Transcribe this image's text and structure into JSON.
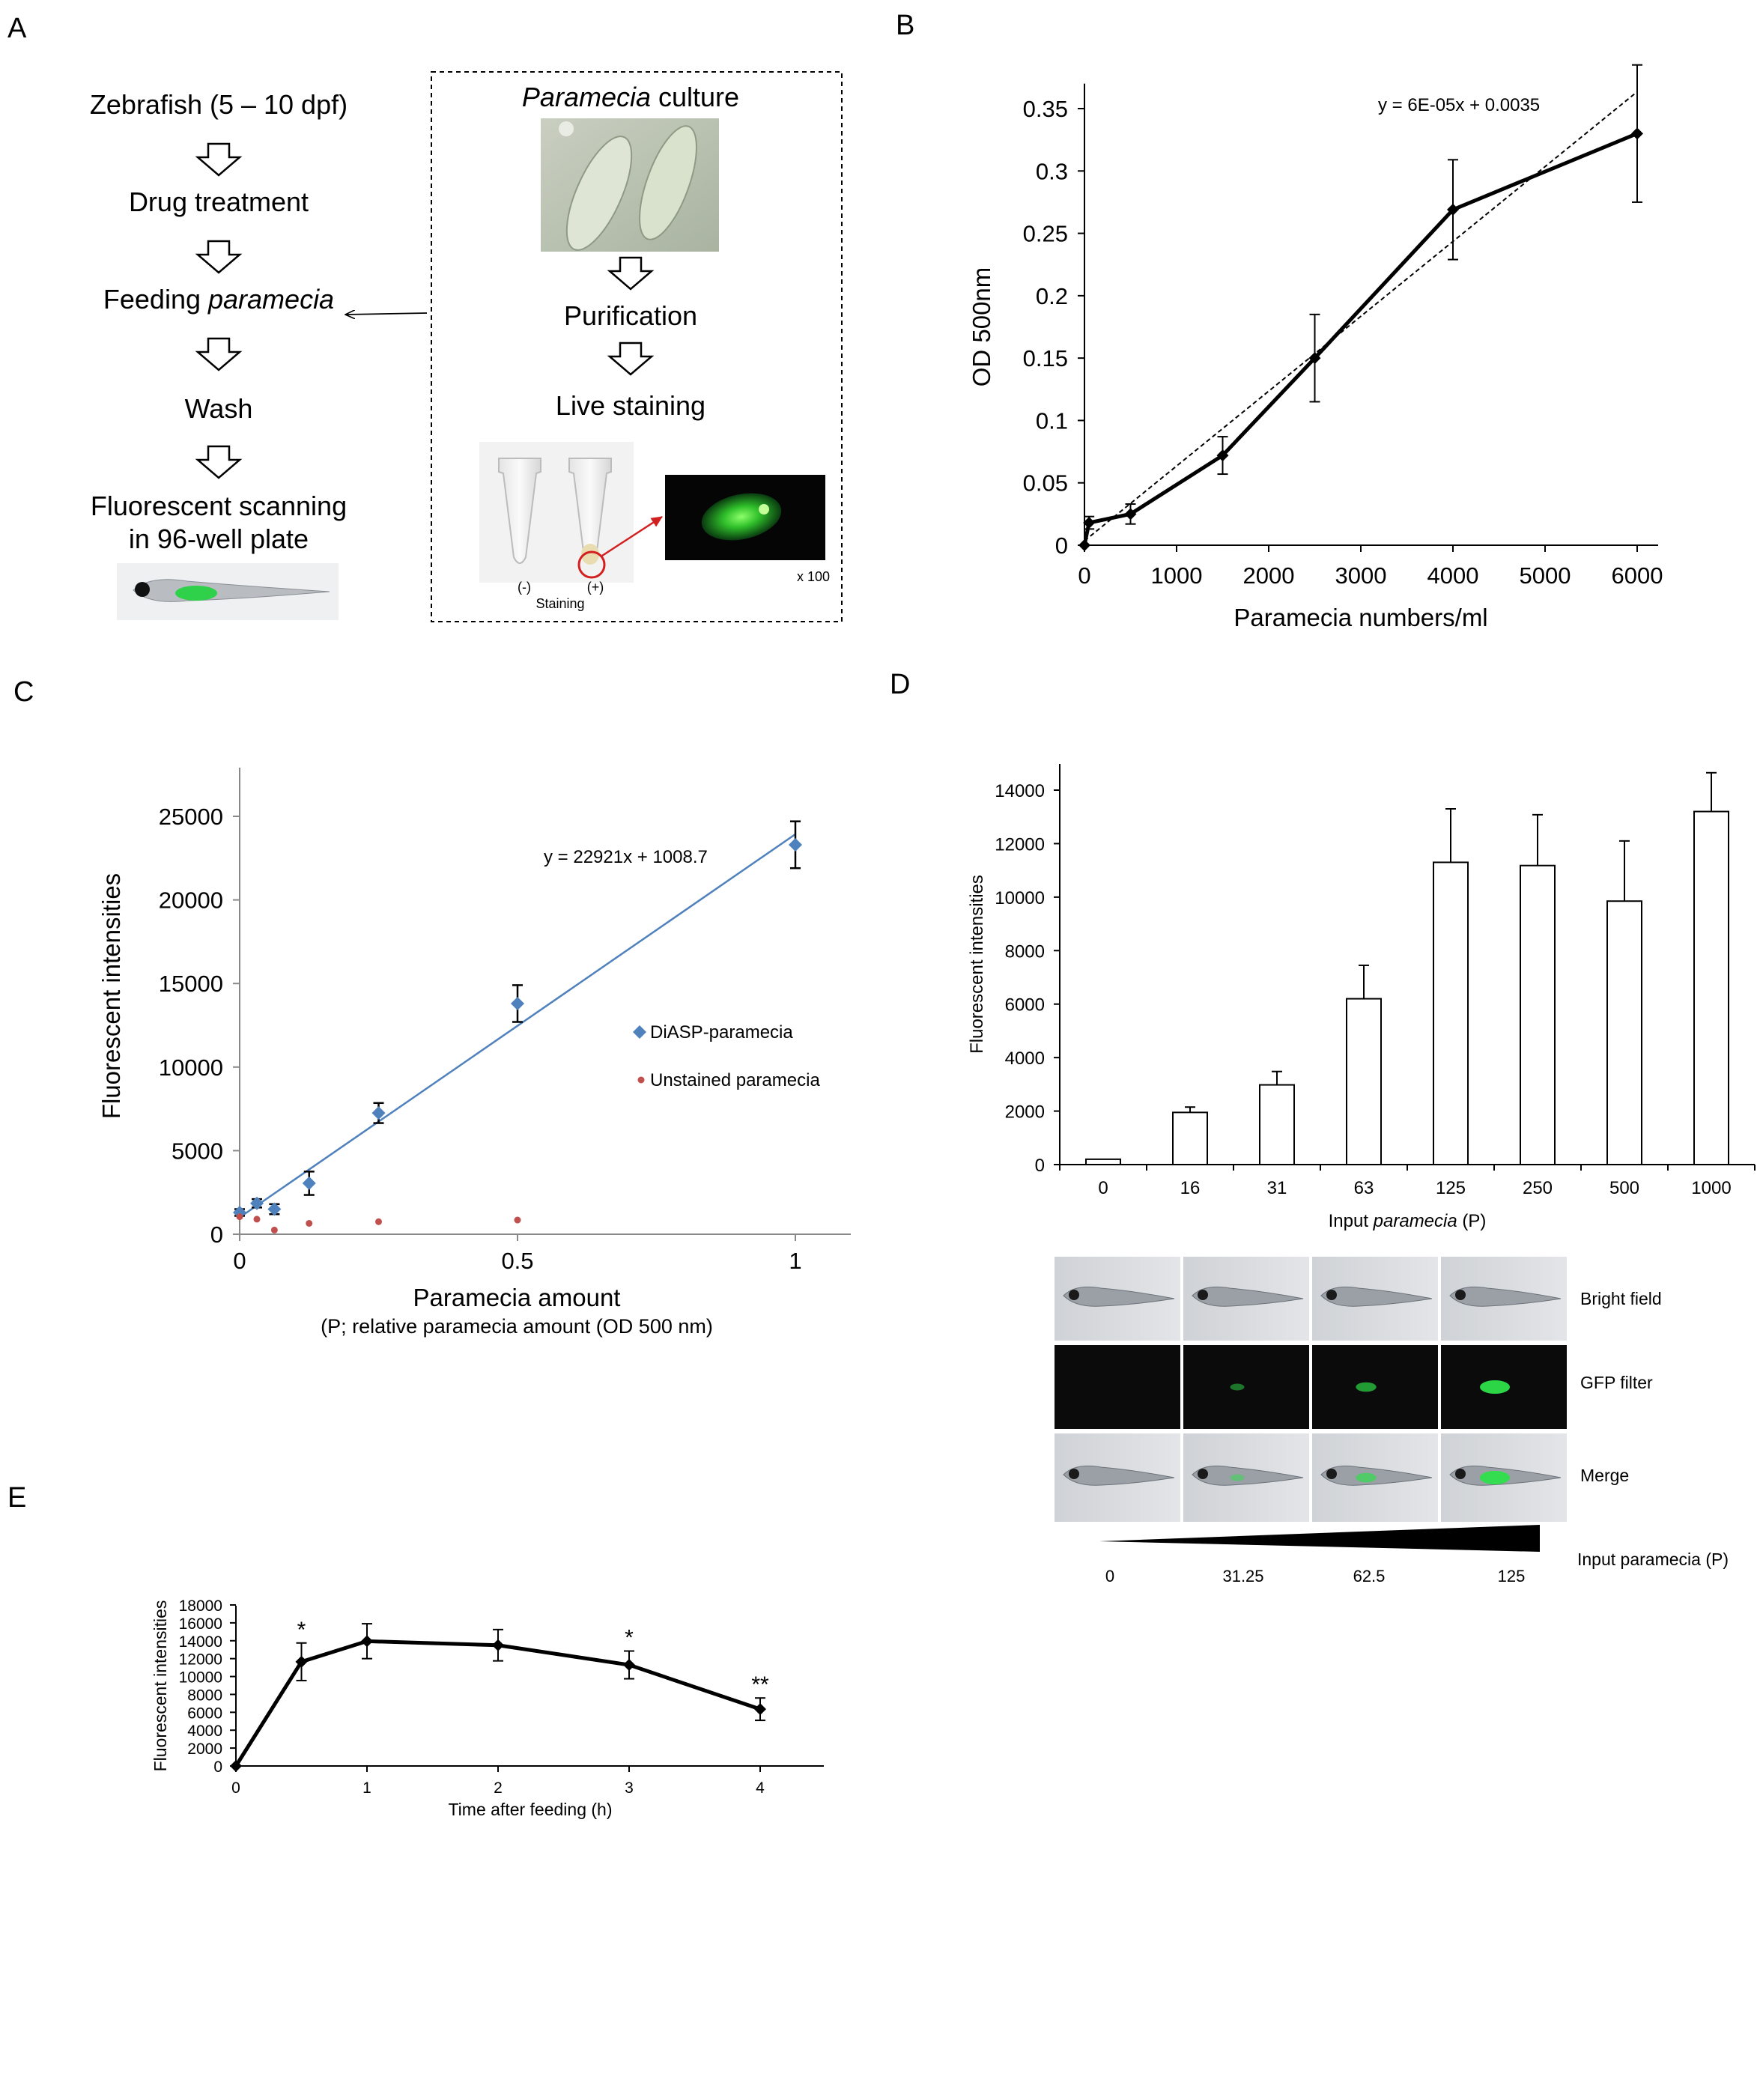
{
  "panels": {
    "a": {
      "letter": "A",
      "steps": [
        "Zebrafish (5 – 10 dpf)",
        "Drug treatment",
        "Feeding ",
        "Wash",
        "Fluorescent scanning",
        "in 96-well plate"
      ],
      "feeding_italic": "paramecia",
      "culture_italic": "Paramecia",
      "culture_rest": " culture",
      "purification": "Purification",
      "live_staining": "Live staining",
      "tube_neg": "(-)",
      "tube_pos": "(+)",
      "staining": "Staining",
      "magnification": "x 100"
    },
    "b": {
      "letter": "B"
    },
    "c": {
      "letter": "C"
    },
    "d": {
      "letter": "D",
      "row_labels": [
        "Bright field",
        "GFP filter",
        "Merge"
      ],
      "wedge_label": "Input paramecia (P)",
      "wedge_ticks": [
        "0",
        "31.25",
        "62.5",
        "125"
      ]
    },
    "e": {
      "letter": "E"
    }
  },
  "chart_data": [
    {
      "id": "B",
      "type": "line",
      "xlabel": "Paramecia numbers/ml",
      "ylabel": "OD 500nm",
      "xlim": [
        0,
        6000
      ],
      "ylim": [
        0,
        0.35
      ],
      "xticks": [
        0,
        1000,
        2000,
        3000,
        4000,
        5000,
        6000
      ],
      "yticks": [
        0,
        0.05,
        0.1,
        0.15,
        0.2,
        0.25,
        0.3,
        0.35
      ],
      "x": [
        0,
        50,
        500,
        1500,
        2500,
        4000,
        6000
      ],
      "y": [
        0,
        0.018,
        0.025,
        0.072,
        0.15,
        0.269,
        0.33
      ],
      "err": [
        0,
        0.005,
        0.008,
        0.015,
        0.035,
        0.04,
        0.055
      ],
      "trendline": {
        "equation": "y = 6E-05x + 0.0035",
        "slope": 6e-05,
        "intercept": 0.0035,
        "style": "dashed"
      },
      "grid": false
    },
    {
      "id": "C",
      "type": "scatter",
      "xlabel": "Paramecia amount",
      "xlabel2": "(P; relative paramecia amount (OD 500 nm)",
      "ylabel": "Fluorescent intensities",
      "xlim": [
        0,
        1.1
      ],
      "ylim": [
        0,
        27500
      ],
      "xticks": [
        0,
        0.5,
        1
      ],
      "yticks": [
        0,
        5000,
        10000,
        15000,
        20000,
        25000
      ],
      "series": [
        {
          "name": "DiASP-paramecia",
          "color": "#4F81BD",
          "x": [
            0,
            0.031,
            0.0625,
            0.125,
            0.25,
            0.5,
            1
          ],
          "y": [
            1300,
            1850,
            1500,
            3050,
            7250,
            13800,
            23300
          ],
          "err": [
            200,
            250,
            300,
            700,
            600,
            1100,
            1400
          ]
        },
        {
          "name": "Unstained paramecia",
          "color": "#C0504D",
          "x": [
            0,
            0.031,
            0.0625,
            0.125,
            0.25,
            0.5
          ],
          "y": [
            1050,
            900,
            250,
            650,
            750,
            850
          ]
        }
      ],
      "trendline": {
        "equation": "y = 22921x + 1008.7",
        "slope": 22921,
        "intercept": 1008.7
      },
      "legend": "right"
    },
    {
      "id": "D",
      "type": "bar",
      "xlabel_pre": "Input ",
      "xlabel_italic": "paramecia",
      "xlabel_post": " (P)",
      "ylabel": "Fluorescent intensities",
      "ylim": [
        0,
        15000
      ],
      "yticks": [
        0,
        2000,
        4000,
        6000,
        8000,
        10000,
        12000,
        14000
      ],
      "categories": [
        "0",
        "16",
        "31",
        "63",
        "125",
        "250",
        "500",
        "1000"
      ],
      "values": [
        200,
        1950,
        2980,
        6200,
        11300,
        11180,
        9850,
        13200
      ],
      "err": [
        0,
        200,
        500,
        1250,
        2000,
        1900,
        2250,
        1450
      ]
    },
    {
      "id": "E",
      "type": "line",
      "xlabel": "Time after feeding (h)",
      "ylabel": "Fluorescent intensities",
      "xlim": [
        0,
        4.4
      ],
      "ylim": [
        0,
        18000
      ],
      "xticks": [
        0,
        1,
        2,
        3,
        4
      ],
      "yticks": [
        0,
        2000,
        4000,
        6000,
        8000,
        10000,
        12000,
        14000,
        16000,
        18000
      ],
      "x": [
        0,
        0.5,
        1,
        2,
        3,
        4
      ],
      "y": [
        0,
        11650,
        13950,
        13500,
        11300,
        6350
      ],
      "err": [
        0,
        2100,
        1950,
        1750,
        1550,
        1250
      ],
      "annotations": [
        "",
        "*",
        "",
        "",
        "*",
        "**"
      ]
    }
  ]
}
